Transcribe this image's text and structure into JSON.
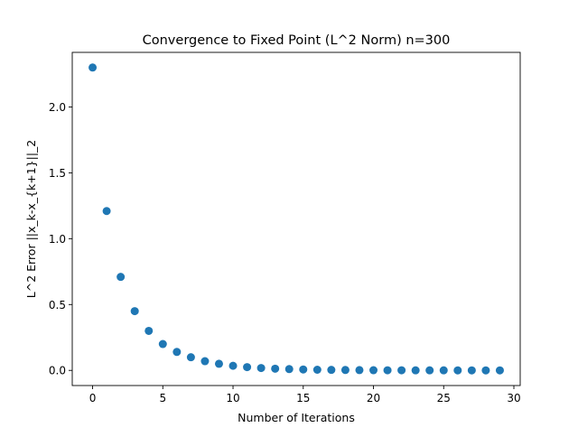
{
  "chart_data": {
    "type": "scatter",
    "title": "Convergence to Fixed Point (L^2 Norm) n=300",
    "xlabel": "Number of Iterations",
    "ylabel": "L^2 Error ||x_k-x_{k+1}||_2",
    "xlim": [
      -1.45,
      30.45
    ],
    "ylim": [
      -0.115,
      2.415
    ],
    "xticks": [
      0,
      5,
      10,
      15,
      20,
      25,
      30
    ],
    "xtick_labels": [
      "0",
      "5",
      "10",
      "15",
      "20",
      "25",
      "30"
    ],
    "yticks": [
      0.0,
      0.5,
      1.0,
      1.5,
      2.0
    ],
    "ytick_labels": [
      "0.0",
      "0.5",
      "1.0",
      "1.5",
      "2.0"
    ],
    "grid": false,
    "legend": "none",
    "marker_color": "#1f77b4",
    "series": [
      {
        "x": [
          0,
          1,
          2,
          3,
          4,
          5,
          6,
          7,
          8,
          9,
          10,
          11,
          12,
          13,
          14,
          15,
          16,
          17,
          18,
          19,
          20,
          21,
          22,
          23,
          24,
          25,
          26,
          27,
          28,
          29
        ],
        "y": [
          2.3,
          1.21,
          0.71,
          0.45,
          0.3,
          0.2,
          0.14,
          0.1,
          0.07,
          0.05,
          0.035,
          0.025,
          0.018,
          0.013,
          0.01,
          0.007,
          0.005,
          0.004,
          0.003,
          0.002,
          0.0015,
          0.001,
          0.0008,
          0.0006,
          0.0004,
          0.0003,
          0.0002,
          0.0002,
          0.0001,
          0.0001
        ]
      }
    ]
  }
}
